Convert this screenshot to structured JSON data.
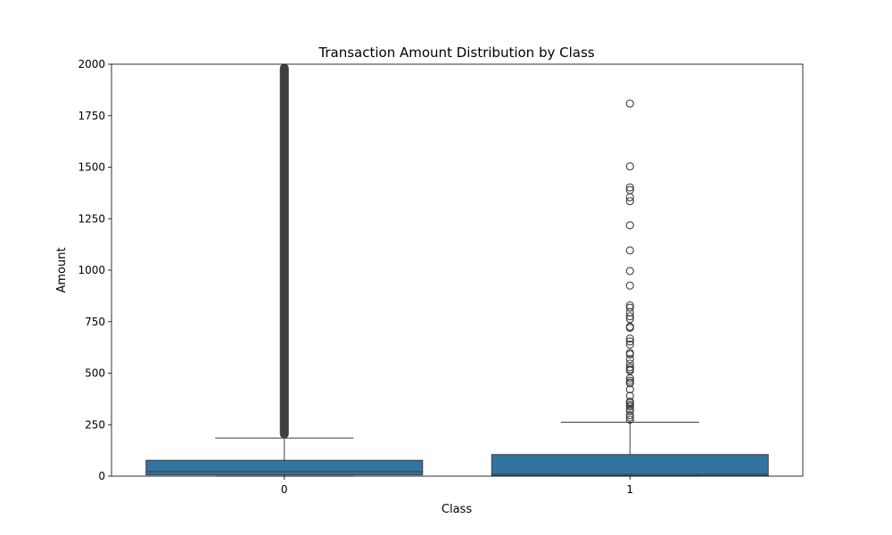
{
  "chart_data": {
    "type": "box",
    "title": "Transaction Amount Distribution by Class",
    "xlabel": "Class",
    "ylabel": "Amount",
    "ylim": [
      0,
      2000
    ],
    "yticks": [
      0,
      250,
      500,
      750,
      1000,
      1250,
      1500,
      1750,
      2000
    ],
    "categories": [
      "0",
      "1"
    ],
    "grid": false,
    "colors": {
      "box_fill": "#3274a1",
      "line": "#3f3f3f",
      "axis": "#000000"
    },
    "boxes": [
      {
        "category": "0",
        "q1": 6,
        "median": 22,
        "q3": 77,
        "whisker_low": 0,
        "whisker_high": 185,
        "dense_outliers": {
          "from": 185,
          "to": 2000
        },
        "outliers": []
      },
      {
        "category": "1",
        "q1": 1,
        "median": 9,
        "q3": 105,
        "whisker_low": 0,
        "whisker_high": 262,
        "outliers": [
          1809,
          1504,
          1402,
          1389,
          1354,
          1335,
          1218,
          1096,
          996,
          925,
          829,
          818,
          795,
          776,
          763,
          726,
          720,
          668,
          654,
          639,
          598,
          591,
          568,
          546,
          529,
          519,
          512,
          475,
          463,
          454,
          451,
          421,
          390,
          362,
          355,
          345,
          338,
          325,
          318,
          296,
          285,
          274
        ]
      }
    ]
  }
}
